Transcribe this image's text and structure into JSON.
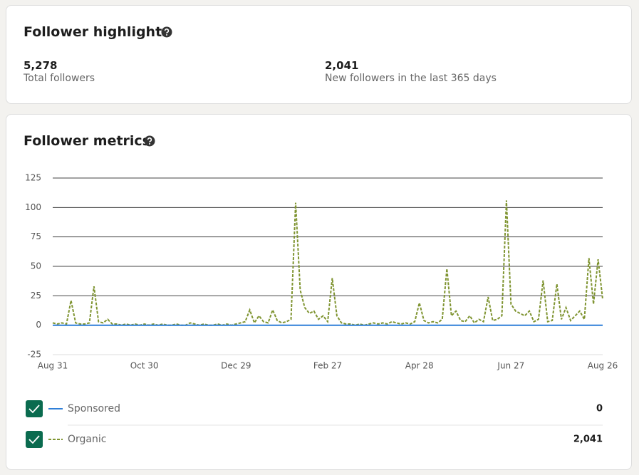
{
  "highlights": {
    "title": "Follower highlights",
    "stats": [
      {
        "value": "5,278",
        "label": "Total followers"
      },
      {
        "value": "2,041",
        "label": "New followers in the last 365 days"
      }
    ]
  },
  "chart_data": {
    "type": "line",
    "title": "Follower metrics",
    "x": [
      0,
      3,
      6,
      9,
      12,
      15,
      18,
      21,
      24,
      27,
      30,
      33,
      36,
      39,
      42,
      45,
      48,
      51,
      54,
      57,
      60,
      63,
      66,
      69,
      72,
      75,
      78,
      81,
      84,
      87,
      90,
      93,
      96,
      99,
      102,
      105,
      108,
      111,
      114,
      117,
      120,
      123,
      126,
      129,
      132,
      135,
      138,
      141,
      144,
      147,
      150,
      153,
      156,
      159,
      162,
      165,
      168,
      171,
      174,
      177,
      180,
      183,
      186,
      189,
      192,
      195,
      198,
      201,
      204,
      207,
      210,
      213,
      216,
      219,
      222,
      225,
      228,
      231,
      234,
      237,
      240,
      243,
      246,
      249,
      252,
      255,
      258,
      261,
      264,
      267,
      270,
      273,
      276,
      279,
      282,
      285,
      288,
      291,
      294,
      297,
      300,
      303,
      306,
      309,
      312,
      315,
      318,
      321,
      324,
      327,
      330,
      333,
      336,
      339,
      342,
      345,
      348,
      351,
      354,
      357,
      360
    ],
    "xlim": [
      0,
      360
    ],
    "xticks": [
      {
        "value": 0,
        "label": "Aug 31"
      },
      {
        "value": 60,
        "label": "Oct 30"
      },
      {
        "value": 120,
        "label": "Dec 29"
      },
      {
        "value": 180,
        "label": "Feb 27"
      },
      {
        "value": 240,
        "label": "Apr 28"
      },
      {
        "value": 300,
        "label": "Jun 27"
      },
      {
        "value": 360,
        "label": "Aug 26"
      }
    ],
    "ylim": [
      -25,
      125
    ],
    "yticks": [
      -25,
      0,
      25,
      50,
      75,
      100,
      125
    ],
    "grid": true,
    "series": [
      {
        "name": "Sponsored",
        "color": "#2f7fd8",
        "dash": false,
        "total": "0",
        "values": [
          0,
          0,
          0,
          0,
          0,
          0,
          0,
          0,
          0,
          0,
          0,
          0,
          0,
          0,
          0,
          0,
          0,
          0,
          0,
          0,
          0,
          0,
          0,
          0,
          0,
          0,
          0,
          0,
          0,
          0,
          0,
          0,
          0,
          0,
          0,
          0,
          0,
          0,
          0,
          0,
          0,
          0,
          0,
          0,
          0,
          0,
          0,
          0,
          0,
          0,
          0,
          0,
          0,
          0,
          0,
          0,
          0,
          0,
          0,
          0,
          0,
          0,
          0,
          0,
          0,
          0,
          0,
          0,
          0,
          0,
          0,
          0,
          0,
          0,
          0,
          0,
          0,
          0,
          0,
          0,
          0,
          0,
          0,
          0,
          0,
          0,
          0,
          0,
          0,
          0,
          0,
          0,
          0,
          0,
          0,
          0,
          0,
          0,
          0,
          0,
          0,
          0,
          0,
          0,
          0,
          0,
          0,
          0,
          0,
          0,
          0,
          0,
          0,
          0,
          0,
          0,
          0,
          0,
          0,
          0,
          0
        ]
      },
      {
        "name": "Organic",
        "color": "#7f9431",
        "dash": true,
        "total": "2,041",
        "values": [
          2,
          1,
          2,
          1,
          21,
          2,
          1,
          1,
          2,
          33,
          3,
          2,
          5,
          1,
          1,
          0,
          1,
          0,
          1,
          0,
          1,
          0,
          1,
          0,
          1,
          0,
          0,
          1,
          0,
          0,
          2,
          1,
          0,
          1,
          0,
          0,
          1,
          0,
          1,
          0,
          1,
          2,
          3,
          13,
          2,
          8,
          3,
          2,
          13,
          4,
          2,
          3,
          5,
          104,
          30,
          15,
          10,
          12,
          5,
          8,
          3,
          40,
          8,
          2,
          1,
          1,
          0,
          1,
          0,
          1,
          2,
          1,
          2,
          1,
          3,
          2,
          1,
          2,
          1,
          3,
          19,
          4,
          2,
          3,
          2,
          5,
          48,
          8,
          12,
          4,
          3,
          8,
          2,
          5,
          3,
          24,
          4,
          5,
          8,
          106,
          18,
          12,
          10,
          8,
          12,
          3,
          5,
          38,
          3,
          4,
          35,
          5,
          15,
          4,
          8,
          12,
          5,
          57,
          18,
          56,
          22
        ]
      }
    ]
  }
}
